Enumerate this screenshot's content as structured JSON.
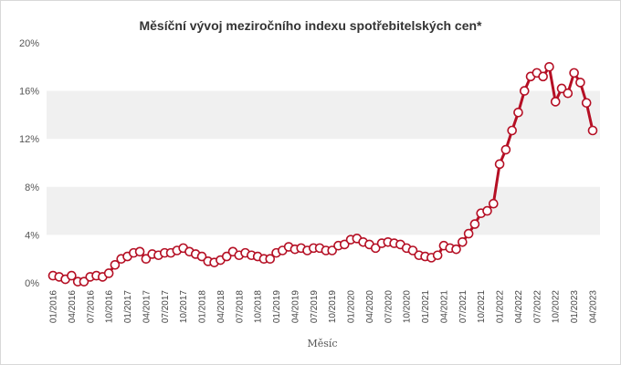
{
  "chart_data": {
    "type": "line",
    "title": "Měsíční vývoj meziročního indexu spotřebitelských cen*",
    "xlabel": "Měsíc",
    "ylabel": "",
    "ylim": [
      0,
      20
    ],
    "yticks": [
      {
        "value": 0,
        "label": "0%"
      },
      {
        "value": 4,
        "label": "4%"
      },
      {
        "value": 8,
        "label": "8%"
      },
      {
        "value": 12,
        "label": "12%"
      },
      {
        "value": 16,
        "label": "16%"
      },
      {
        "value": 20,
        "label": "20%"
      }
    ],
    "grid": "alternating horizontal bands",
    "legend": "none",
    "line_color": "#b50f24",
    "band_color": "#f0f0f0",
    "x_tick_labels": [
      "01/2016",
      "04/2016",
      "07/2016",
      "10/2016",
      "01/2017",
      "04/2017",
      "07/2017",
      "10/2017",
      "01/2018",
      "04/2018",
      "07/2018",
      "10/2018",
      "01/2019",
      "04/2019",
      "07/2019",
      "10/2019",
      "01/2020",
      "04/2020",
      "07/2020",
      "10/2020",
      "01/2021",
      "04/2021",
      "07/2021",
      "10/2021",
      "01/2022",
      "04/2022",
      "07/2022",
      "10/2022",
      "01/2023",
      "04/2023"
    ],
    "series": [
      {
        "x": [
          "01/2016",
          "02/2016",
          "03/2016",
          "04/2016",
          "05/2016",
          "06/2016",
          "07/2016",
          "08/2016",
          "09/2016",
          "10/2016",
          "11/2016",
          "12/2016",
          "01/2017",
          "02/2017",
          "03/2017",
          "04/2017",
          "05/2017",
          "06/2017",
          "07/2017",
          "08/2017",
          "09/2017",
          "10/2017",
          "11/2017",
          "12/2017",
          "01/2018",
          "02/2018",
          "03/2018",
          "04/2018",
          "05/2018",
          "06/2018",
          "07/2018",
          "08/2018",
          "09/2018",
          "10/2018",
          "11/2018",
          "12/2018",
          "01/2019",
          "02/2019",
          "03/2019",
          "04/2019",
          "05/2019",
          "06/2019",
          "07/2019",
          "08/2019",
          "09/2019",
          "10/2019",
          "11/2019",
          "12/2019",
          "01/2020",
          "02/2020",
          "03/2020",
          "04/2020",
          "05/2020",
          "06/2020",
          "07/2020",
          "08/2020",
          "09/2020",
          "10/2020",
          "11/2020",
          "12/2020",
          "01/2021",
          "02/2021",
          "03/2021",
          "04/2021",
          "05/2021",
          "06/2021",
          "07/2021",
          "08/2021",
          "09/2021",
          "10/2021",
          "11/2021",
          "12/2021",
          "01/2022",
          "02/2022",
          "03/2022",
          "04/2022",
          "05/2022",
          "06/2022",
          "07/2022",
          "08/2022",
          "09/2022",
          "10/2022",
          "11/2022",
          "12/2022",
          "01/2023",
          "02/2023",
          "03/2023",
          "04/2023"
        ],
        "values": [
          0.6,
          0.5,
          0.3,
          0.6,
          0.1,
          0.1,
          0.5,
          0.6,
          0.5,
          0.8,
          1.5,
          2.0,
          2.2,
          2.5,
          2.6,
          2.0,
          2.4,
          2.3,
          2.5,
          2.5,
          2.7,
          2.9,
          2.6,
          2.4,
          2.2,
          1.8,
          1.7,
          1.9,
          2.2,
          2.6,
          2.3,
          2.5,
          2.3,
          2.2,
          2.0,
          2.0,
          2.5,
          2.7,
          3.0,
          2.8,
          2.9,
          2.7,
          2.9,
          2.9,
          2.7,
          2.7,
          3.1,
          3.2,
          3.6,
          3.7,
          3.4,
          3.2,
          2.9,
          3.3,
          3.4,
          3.3,
          3.2,
          2.9,
          2.7,
          2.3,
          2.2,
          2.1,
          2.3,
          3.1,
          2.9,
          2.8,
          3.4,
          4.1,
          4.9,
          5.8,
          6.0,
          6.6,
          9.9,
          11.1,
          12.7,
          14.2,
          16.0,
          17.2,
          17.5,
          17.2,
          18.0,
          15.1,
          16.2,
          15.8,
          17.5,
          16.7,
          15.0,
          12.7
        ]
      }
    ]
  }
}
